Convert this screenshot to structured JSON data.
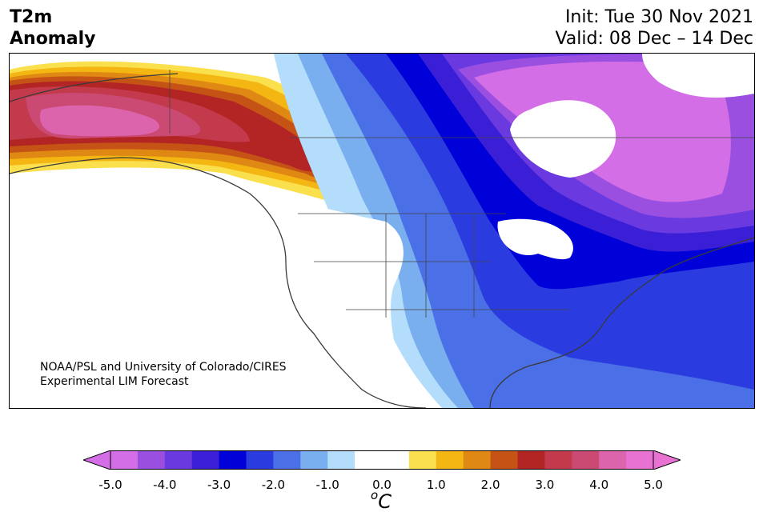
{
  "header": {
    "title_line1": "T2m",
    "title_line2": "Anomaly",
    "init": "Init: Tue 30 Nov 2021",
    "valid": "Valid: 08 Dec – 14 Dec"
  },
  "map": {
    "credit_line1": "NOAA/PSL and University of Colorado/CIRES",
    "credit_line2": "Experimental LIM Forecast"
  },
  "colorbar": {
    "unit_prefix": "o",
    "unit_main": "C",
    "tick_labels": [
      "-5.0",
      "-4.0",
      "-3.0",
      "-2.0",
      "-1.0",
      "0.0",
      "1.0",
      "2.0",
      "3.0",
      "4.0",
      "5.0"
    ],
    "levels_min": -5.0,
    "levels_max": 5.0,
    "extend": "both",
    "colors": [
      "#d36ee6",
      "#9b4fe0",
      "#6a3ae0",
      "#3a1fd6",
      "#0000d8",
      "#2a3cdf",
      "#4a6fe6",
      "#79afee",
      "#b4dcfb",
      "#ffffff",
      "#ffffff",
      "#fbe04e",
      "#f3b612",
      "#df8914",
      "#c55316",
      "#b32424",
      "#c23a4b",
      "#cb4a73",
      "#db64ac",
      "#e872d2"
    ]
  }
}
